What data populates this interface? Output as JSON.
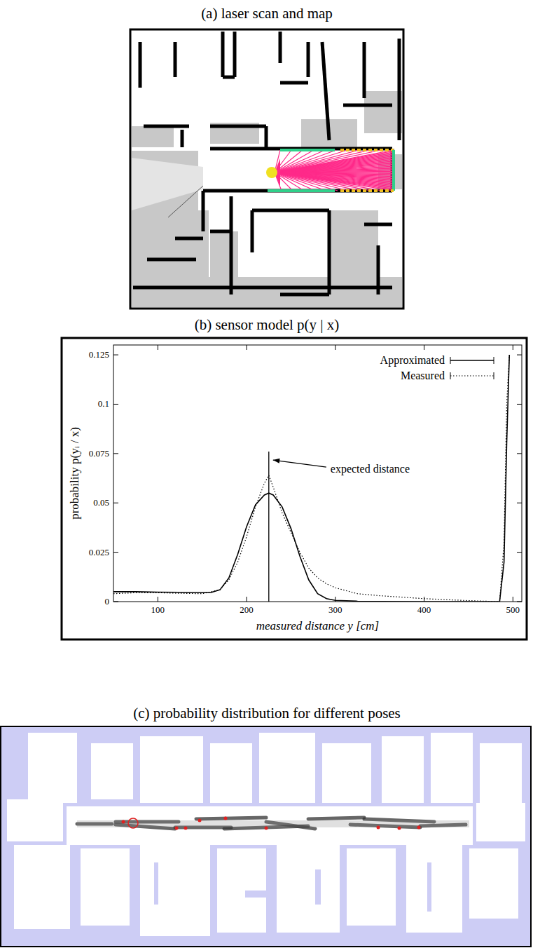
{
  "panels": {
    "a": {
      "title": "(a) laser scan and map"
    },
    "c": {
      "title": "(c) probability distribution for different poses"
    }
  },
  "chart_data": {
    "type": "line",
    "title": "(b) sensor model p(y | x)",
    "x_label": "measured distance y  [cm]",
    "y_label": "probability  p(yᵢ / x)",
    "xlim": [
      50,
      510
    ],
    "ylim": [
      0,
      0.13
    ],
    "xticks": [
      100,
      200,
      300,
      400,
      500
    ],
    "yticks": [
      0,
      0.025,
      0.05,
      0.075,
      0.1,
      0.125
    ],
    "legend": "top-right",
    "grid": false,
    "x": [
      50,
      75,
      100,
      125,
      150,
      160,
      170,
      180,
      190,
      200,
      210,
      220,
      225,
      230,
      240,
      250,
      260,
      270,
      280,
      290,
      300,
      325,
      350,
      400,
      450,
      485,
      490,
      493,
      496
    ],
    "series": [
      {
        "name": "Approximated",
        "color": "#000000",
        "line_style": "solid",
        "values": [
          0.005,
          0.005,
          0.0048,
          0.0047,
          0.0046,
          0.0046,
          0.006,
          0.012,
          0.024,
          0.038,
          0.049,
          0.054,
          0.055,
          0.054,
          0.048,
          0.037,
          0.023,
          0.011,
          0.004,
          0.0015,
          0.0006,
          0.0002,
          0.0001,
          0,
          0,
          0,
          0.02,
          0.08,
          0.125
        ]
      },
      {
        "name": "Measured",
        "color": "#000000",
        "line_style": "dotted",
        "values": [
          0.004,
          0.0045,
          0.0045,
          0.0042,
          0.004,
          0.005,
          0.006,
          0.011,
          0.02,
          0.033,
          0.048,
          0.06,
          0.064,
          0.058,
          0.045,
          0.035,
          0.025,
          0.017,
          0.012,
          0.009,
          0.007,
          0.004,
          0.003,
          0.0015,
          0.0005,
          0,
          0.03,
          0.1,
          0.125
        ]
      }
    ],
    "annotations": [
      {
        "text": "expected distance",
        "x": 225,
        "y": 0.076
      }
    ]
  }
}
